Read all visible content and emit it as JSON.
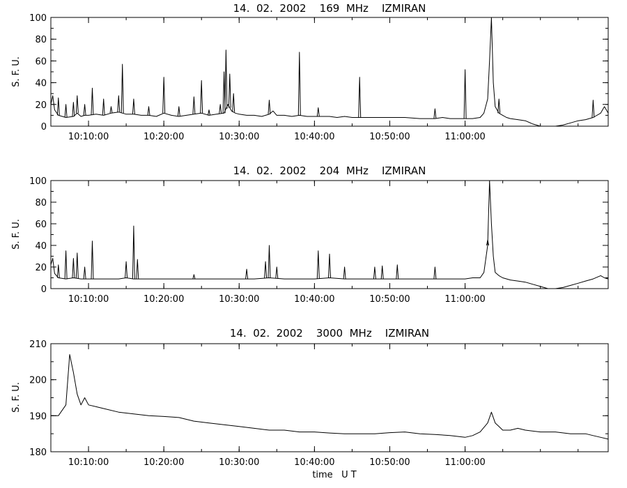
{
  "chart_data": [
    {
      "type": "line",
      "title": "14.  02.  2002    169  MHz    IZMIRAN",
      "ylabel": "S. F. U.",
      "xlabel": "",
      "xlim": [
        "10:05:00",
        "11:19:00"
      ],
      "ylim": [
        0,
        100
      ],
      "yticks": [
        0,
        20,
        40,
        60,
        80,
        100
      ],
      "xticks": [
        "10:10:00",
        "10:20:00",
        "10:30:00",
        "10:40:00",
        "10:50:00",
        "11:00:00"
      ],
      "grid": false,
      "series": [
        {
          "x": [
            "10:05:00",
            "10:05:15",
            "10:05:30",
            "10:06:00",
            "10:07:00",
            "10:08:00",
            "10:08:30",
            "10:09:00",
            "10:09:30",
            "10:10:00",
            "10:11:00",
            "10:12:00",
            "10:13:00",
            "10:14:00",
            "10:15:00",
            "10:16:00",
            "10:17:00",
            "10:18:00",
            "10:19:00",
            "10:20:00",
            "10:21:00",
            "10:22:00",
            "10:23:00",
            "10:24:00",
            "10:25:00",
            "10:26:00",
            "10:27:00",
            "10:28:00",
            "10:28:30",
            "10:29:00",
            "10:29:30",
            "10:30:00",
            "10:31:00",
            "10:32:00",
            "10:33:00",
            "10:34:00",
            "10:34:30",
            "10:35:00",
            "10:36:00",
            "10:37:00",
            "10:38:00",
            "10:39:00",
            "10:40:00",
            "10:41:00",
            "10:42:00",
            "10:43:00",
            "10:44:00",
            "10:45:00",
            "10:46:00",
            "10:47:00",
            "10:48:00",
            "10:50:00",
            "10:52:00",
            "10:54:00",
            "10:56:00",
            "10:57:00",
            "10:58:00",
            "11:00:00",
            "11:01:00",
            "11:02:00",
            "11:02:30",
            "11:03:00",
            "11:03:15",
            "11:03:30",
            "11:03:45",
            "11:04:00",
            "11:04:30",
            "11:05:00",
            "11:05:30",
            "11:06:00",
            "11:07:00",
            "11:08:00",
            "11:09:00",
            "11:10:00",
            "11:11:00",
            "11:12:00",
            "11:13:00",
            "11:14:00",
            "11:15:00",
            "11:16:00",
            "11:17:00",
            "11:18:00",
            "11:18:30",
            "11:19:00"
          ],
          "values": [
            20,
            28,
            15,
            10,
            8,
            9,
            12,
            9,
            10,
            10,
            11,
            10,
            12,
            13,
            11,
            11,
            10,
            10,
            9,
            12,
            10,
            9,
            10,
            11,
            12,
            10,
            11,
            12,
            20,
            14,
            12,
            11,
            10,
            10,
            9,
            11,
            14,
            10,
            10,
            9,
            10,
            9,
            9,
            9,
            9,
            8,
            9,
            8,
            8,
            8,
            8,
            8,
            8,
            7,
            7,
            8,
            7,
            7,
            7,
            8,
            12,
            25,
            60,
            100,
            40,
            18,
            12,
            10,
            8,
            7,
            6,
            5,
            2,
            0,
            0,
            0,
            1,
            3,
            5,
            6,
            8,
            12,
            18,
            12
          ]
        }
      ],
      "spikes": [
        {
          "x": "10:06:00",
          "y": 26
        },
        {
          "x": "10:07:00",
          "y": 20
        },
        {
          "x": "10:08:00",
          "y": 22
        },
        {
          "x": "10:08:30",
          "y": 28
        },
        {
          "x": "10:09:30",
          "y": 20
        },
        {
          "x": "10:10:30",
          "y": 35
        },
        {
          "x": "10:12:00",
          "y": 25
        },
        {
          "x": "10:13:00",
          "y": 18
        },
        {
          "x": "10:14:00",
          "y": 28
        },
        {
          "x": "10:14:30",
          "y": 57
        },
        {
          "x": "10:16:00",
          "y": 25
        },
        {
          "x": "10:18:00",
          "y": 18
        },
        {
          "x": "10:20:00",
          "y": 45
        },
        {
          "x": "10:22:00",
          "y": 18
        },
        {
          "x": "10:24:00",
          "y": 27
        },
        {
          "x": "10:25:00",
          "y": 42
        },
        {
          "x": "10:26:00",
          "y": 15
        },
        {
          "x": "10:27:30",
          "y": 20
        },
        {
          "x": "10:28:00",
          "y": 50
        },
        {
          "x": "10:28:15",
          "y": 70
        },
        {
          "x": "10:28:45",
          "y": 48
        },
        {
          "x": "10:29:15",
          "y": 30
        },
        {
          "x": "10:34:00",
          "y": 24
        },
        {
          "x": "10:38:00",
          "y": 68
        },
        {
          "x": "10:40:30",
          "y": 17
        },
        {
          "x": "10:46:00",
          "y": 45
        },
        {
          "x": "10:56:00",
          "y": 16
        },
        {
          "x": "11:00:00",
          "y": 52
        },
        {
          "x": "11:04:30",
          "y": 25
        },
        {
          "x": "11:17:00",
          "y": 24
        }
      ]
    },
    {
      "type": "line",
      "title": "14.  02.  2002    204  MHz    IZMIRAN",
      "ylabel": "S. F. U.",
      "xlabel": "",
      "xlim": [
        "10:05:00",
        "11:19:00"
      ],
      "ylim": [
        0,
        100
      ],
      "yticks": [
        0,
        20,
        40,
        60,
        80,
        100
      ],
      "xticks": [
        "10:10:00",
        "10:20:00",
        "10:30:00",
        "10:40:00",
        "10:50:00",
        "11:00:00"
      ],
      "grid": false,
      "series": [
        {
          "x": [
            "10:05:00",
            "10:05:15",
            "10:05:30",
            "10:06:00",
            "10:07:00",
            "10:08:00",
            "10:09:00",
            "10:10:00",
            "10:11:00",
            "10:12:00",
            "10:13:00",
            "10:14:00",
            "10:15:00",
            "10:16:00",
            "10:17:00",
            "10:18:00",
            "10:19:00",
            "10:20:00",
            "10:22:00",
            "10:24:00",
            "10:26:00",
            "10:28:00",
            "10:30:00",
            "10:32:00",
            "10:34:00",
            "10:36:00",
            "10:38:00",
            "10:40:00",
            "10:42:00",
            "10:44:00",
            "10:46:00",
            "10:48:00",
            "10:50:00",
            "10:52:00",
            "10:54:00",
            "10:56:00",
            "10:58:00",
            "11:00:00",
            "11:01:00",
            "11:02:00",
            "11:02:30",
            "11:03:00",
            "11:03:15",
            "11:03:30",
            "11:03:45",
            "11:04:00",
            "11:04:30",
            "11:05:00",
            "11:06:00",
            "11:07:00",
            "11:08:00",
            "11:09:00",
            "11:10:00",
            "11:11:00",
            "11:12:00",
            "11:13:00",
            "11:14:00",
            "11:15:00",
            "11:16:00",
            "11:17:00",
            "11:18:00",
            "11:18:30",
            "11:19:00"
          ],
          "values": [
            22,
            28,
            14,
            10,
            9,
            10,
            9,
            9,
            9,
            9,
            9,
            9,
            10,
            9,
            9,
            9,
            9,
            9,
            9,
            9,
            9,
            9,
            9,
            9,
            10,
            9,
            9,
            9,
            10,
            9,
            9,
            9,
            9,
            9,
            9,
            9,
            9,
            9,
            10,
            10,
            15,
            40,
            100,
            60,
            30,
            15,
            12,
            10,
            8,
            7,
            6,
            4,
            2,
            0,
            0,
            1,
            3,
            5,
            7,
            9,
            12,
            10,
            9
          ]
        }
      ],
      "spikes": [
        {
          "x": "10:06:00",
          "y": 22
        },
        {
          "x": "10:07:00",
          "y": 35
        },
        {
          "x": "10:08:00",
          "y": 28
        },
        {
          "x": "10:08:30",
          "y": 33
        },
        {
          "x": "10:09:30",
          "y": 20
        },
        {
          "x": "10:10:30",
          "y": 44
        },
        {
          "x": "10:15:00",
          "y": 25
        },
        {
          "x": "10:16:00",
          "y": 58
        },
        {
          "x": "10:16:30",
          "y": 27
        },
        {
          "x": "10:24:00",
          "y": 13
        },
        {
          "x": "10:31:00",
          "y": 18
        },
        {
          "x": "10:33:30",
          "y": 25
        },
        {
          "x": "10:34:00",
          "y": 40
        },
        {
          "x": "10:35:00",
          "y": 20
        },
        {
          "x": "10:40:30",
          "y": 35
        },
        {
          "x": "10:42:00",
          "y": 32
        },
        {
          "x": "10:44:00",
          "y": 20
        },
        {
          "x": "10:48:00",
          "y": 20
        },
        {
          "x": "10:49:00",
          "y": 21
        },
        {
          "x": "10:51:00",
          "y": 22
        },
        {
          "x": "10:56:00",
          "y": 20
        },
        {
          "x": "11:03:00",
          "y": 45
        }
      ]
    },
    {
      "type": "line",
      "title": "14.  02.  2002    3000  MHz    IZMIRAN",
      "ylabel": "S. F. U.",
      "xlabel": "time   U T",
      "xlim": [
        "10:05:00",
        "11:19:00"
      ],
      "ylim": [
        180,
        210
      ],
      "yticks": [
        180,
        190,
        200,
        210
      ],
      "xticks": [
        "10:10:00",
        "10:20:00",
        "10:30:00",
        "10:40:00",
        "10:50:00",
        "11:00:00"
      ],
      "grid": false,
      "series": [
        {
          "x": [
            "10:05:00",
            "10:06:00",
            "10:07:00",
            "10:07:30",
            "10:08:00",
            "10:08:30",
            "10:09:00",
            "10:09:30",
            "10:10:00",
            "10:11:00",
            "10:12:00",
            "10:14:00",
            "10:16:00",
            "10:18:00",
            "10:20:00",
            "10:22:00",
            "10:24:00",
            "10:26:00",
            "10:28:00",
            "10:30:00",
            "10:32:00",
            "10:34:00",
            "10:36:00",
            "10:38:00",
            "10:40:00",
            "10:42:00",
            "10:44:00",
            "10:46:00",
            "10:48:00",
            "10:50:00",
            "10:52:00",
            "10:54:00",
            "10:56:00",
            "10:58:00",
            "11:00:00",
            "11:01:00",
            "11:02:00",
            "11:03:00",
            "11:03:30",
            "11:04:00",
            "11:04:30",
            "11:05:00",
            "11:06:00",
            "11:07:00",
            "11:08:00",
            "11:10:00",
            "11:12:00",
            "11:14:00",
            "11:16:00",
            "11:17:00",
            "11:18:00",
            "11:19:00"
          ],
          "values": [
            190,
            190,
            193,
            207,
            202,
            196,
            193,
            195,
            193,
            192.5,
            192,
            191,
            190.5,
            190,
            189.8,
            189.5,
            188.5,
            188,
            187.5,
            187,
            186.5,
            186,
            186,
            185.5,
            185.5,
            185.2,
            185,
            185,
            185,
            185.3,
            185.5,
            185,
            184.8,
            184.5,
            184,
            184.5,
            185.5,
            188,
            191,
            188,
            187,
            186,
            186,
            186.5,
            186,
            185.5,
            185.5,
            185,
            185,
            184.5,
            184,
            183.5
          ]
        }
      ]
    }
  ]
}
